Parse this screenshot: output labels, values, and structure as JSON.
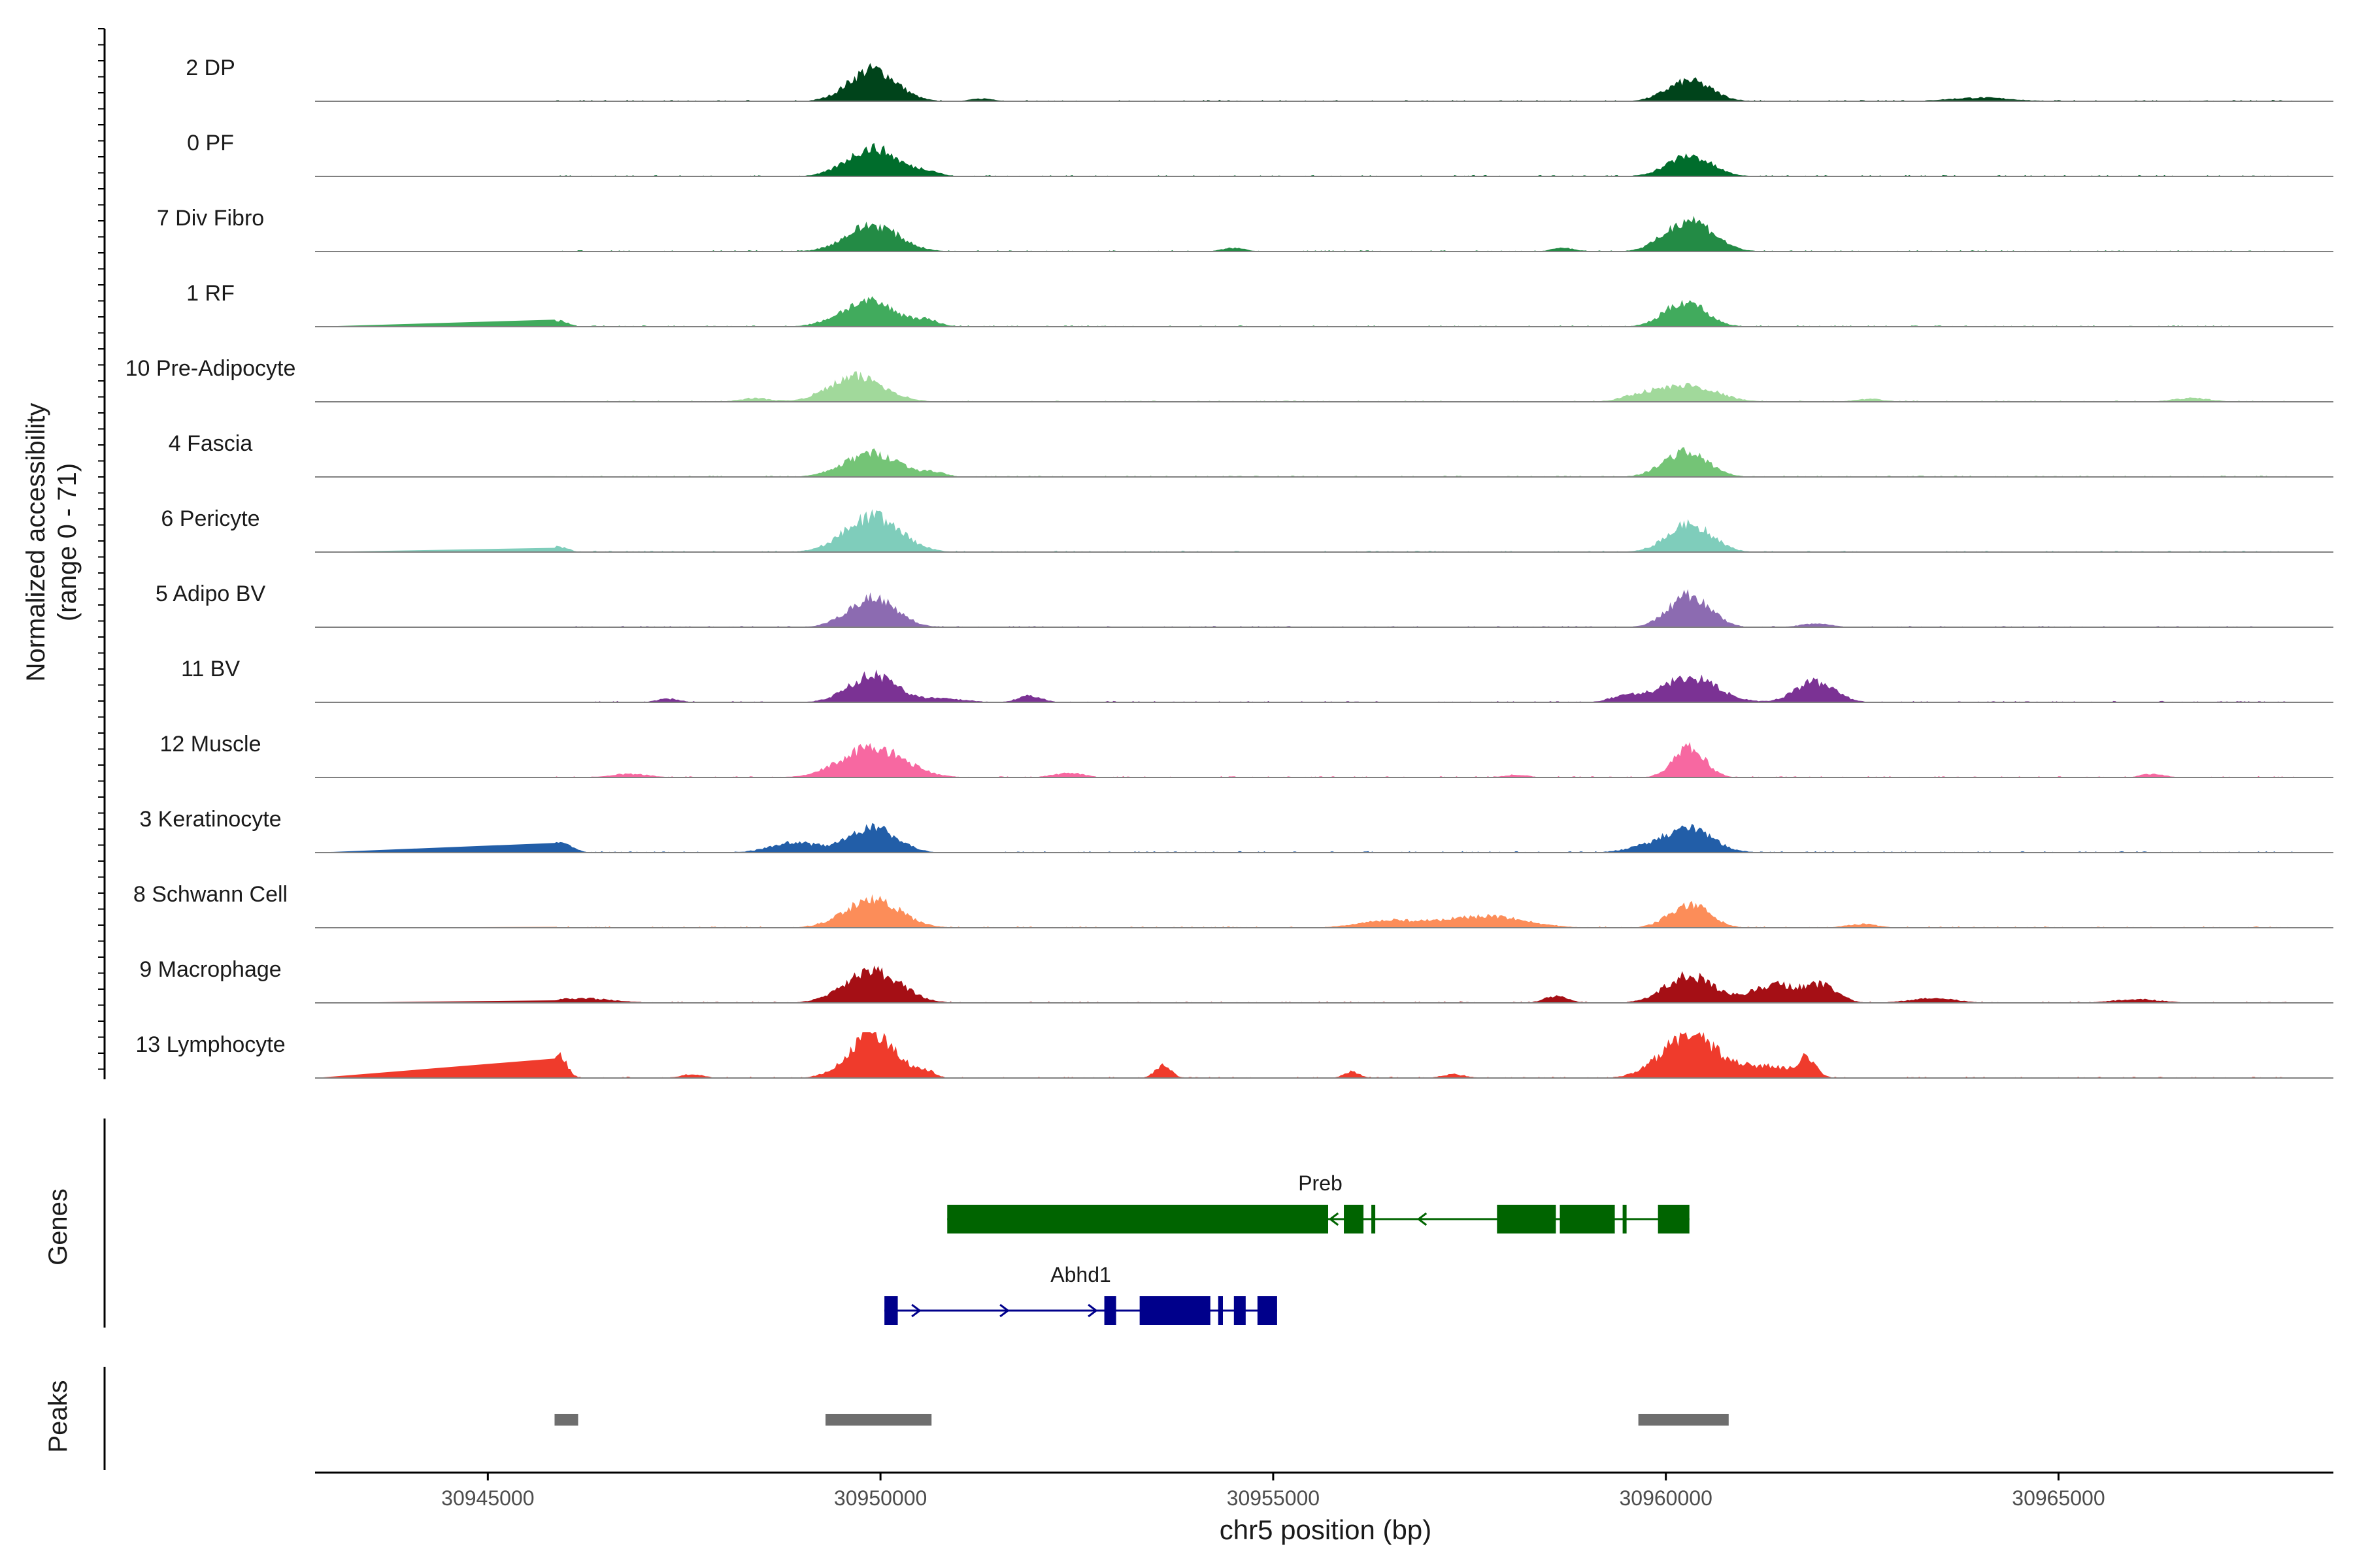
{
  "chart_data": {
    "type": "area",
    "subtype": "genome-coverage-track",
    "ylabel": "Normalized accessibility",
    "ylabel_range": "(range 0 - 71)",
    "ylim": [
      0,
      71
    ],
    "xlabel": "chr5 position (bp)",
    "xlim": [
      30942800,
      30968500
    ],
    "xticks": [
      30945000,
      30950000,
      30955000,
      30960000,
      30965000
    ],
    "xtick_labels": [
      "30945000",
      "30950000",
      "30955000",
      "30960000",
      "30965000"
    ],
    "tracks": [
      {
        "name": "2 DP",
        "color": "#00441b",
        "peaks": [
          [
            30949900,
            70,
            300
          ],
          [
            30960300,
            45,
            280
          ],
          [
            30964000,
            8,
            400
          ],
          [
            30951300,
            6,
            150
          ]
        ]
      },
      {
        "name": "0 PF",
        "color": "#006d2c",
        "peaks": [
          [
            30949900,
            62,
            320
          ],
          [
            30960300,
            45,
            280
          ],
          [
            30950600,
            10,
            150
          ]
        ]
      },
      {
        "name": "7 Div Fibro",
        "color": "#238b45",
        "peaks": [
          [
            30949900,
            58,
            330
          ],
          [
            30960300,
            70,
            300
          ],
          [
            30954500,
            8,
            150
          ],
          [
            30958700,
            8,
            150
          ]
        ]
      },
      {
        "name": "1 RF",
        "color": "#41ab5d",
        "peaks": [
          [
            30949850,
            55,
            350
          ],
          [
            30960250,
            55,
            260
          ],
          [
            30945900,
            14,
            120
          ],
          [
            30950600,
            12,
            150
          ]
        ]
      },
      {
        "name": "10 Pre-Adipocyte",
        "color": "#a1d99b",
        "peaks": [
          [
            30949700,
            55,
            350
          ],
          [
            30960300,
            35,
            350
          ],
          [
            30948400,
            8,
            200
          ],
          [
            30959700,
            14,
            250
          ],
          [
            30966700,
            8,
            250
          ],
          [
            30962600,
            6,
            200
          ]
        ]
      },
      {
        "name": "4 Fascia",
        "color": "#74c476",
        "peaks": [
          [
            30949900,
            52,
            350
          ],
          [
            30960250,
            55,
            280
          ],
          [
            30950700,
            8,
            150
          ]
        ]
      },
      {
        "name": "6 Pericyte",
        "color": "#7fcdbb",
        "peaks": [
          [
            30949900,
            78,
            350
          ],
          [
            30960300,
            62,
            280
          ],
          [
            30945900,
            12,
            120
          ]
        ]
      },
      {
        "name": "5 Adipo BV",
        "color": "#8c6bb1",
        "peaks": [
          [
            30949900,
            65,
            300
          ],
          [
            30960300,
            70,
            260
          ],
          [
            30961900,
            8,
            200
          ]
        ]
      },
      {
        "name": "11 BV",
        "color": "#7b3294",
        "peaks": [
          [
            30949900,
            60,
            300
          ],
          [
            30960300,
            55,
            350
          ],
          [
            30961900,
            45,
            250
          ],
          [
            30959500,
            14,
            200
          ],
          [
            30951900,
            15,
            150
          ],
          [
            30947300,
            8,
            150
          ],
          [
            30950800,
            8,
            300
          ]
        ]
      },
      {
        "name": "12 Muscle",
        "color": "#f768a1",
        "peaks": [
          [
            30949900,
            65,
            400
          ],
          [
            30960300,
            65,
            200
          ],
          [
            30952400,
            10,
            200
          ],
          [
            30946800,
            8,
            250
          ],
          [
            30966200,
            8,
            150
          ],
          [
            30958100,
            6,
            150
          ]
        ]
      },
      {
        "name": "3 Keratinocyte",
        "color": "#225ea8",
        "peaks": [
          [
            30949900,
            55,
            300
          ],
          [
            30960300,
            50,
            300
          ],
          [
            30945900,
            25,
            150
          ],
          [
            30948900,
            22,
            300
          ],
          [
            30959800,
            12,
            300
          ]
        ]
      },
      {
        "name": "8 Schwann Cell",
        "color": "#fc8d59",
        "peaks": [
          [
            30949900,
            62,
            350
          ],
          [
            30960300,
            52,
            250
          ],
          [
            30957700,
            25,
            500
          ],
          [
            30956500,
            15,
            400
          ],
          [
            30962500,
            8,
            200
          ]
        ]
      },
      {
        "name": "9 Macrophage",
        "color": "#a50f15",
        "peaks": [
          [
            30949900,
            70,
            350
          ],
          [
            30960300,
            60,
            300
          ],
          [
            30961400,
            40,
            300
          ],
          [
            30962000,
            35,
            200
          ],
          [
            30958600,
            15,
            150
          ],
          [
            30966000,
            8,
            300
          ],
          [
            30946200,
            10,
            400
          ],
          [
            30963400,
            10,
            300
          ]
        ]
      },
      {
        "name": "13 Lymphocyte",
        "color": "#ef3b2c",
        "peaks": [
          [
            30949900,
            98,
            300
          ],
          [
            30960300,
            95,
            350
          ],
          [
            30945900,
            55,
            100
          ],
          [
            30953600,
            30,
            100
          ],
          [
            30961300,
            25,
            350
          ],
          [
            30961800,
            40,
            100
          ],
          [
            30950600,
            12,
            100
          ],
          [
            30956000,
            14,
            100
          ],
          [
            30947600,
            8,
            150
          ],
          [
            30957300,
            8,
            150
          ]
        ]
      }
    ],
    "genes": [
      {
        "name": "Preb",
        "color": "#006400",
        "strand": "-",
        "start": 30950850,
        "end": 30960300,
        "exons": [
          [
            30950850,
            30955700
          ],
          [
            30955900,
            30956150
          ],
          [
            30956250,
            30956300
          ],
          [
            30957850,
            30958600
          ],
          [
            30958650,
            30959350
          ],
          [
            30959450,
            30959500
          ],
          [
            30959900,
            30960300
          ]
        ]
      },
      {
        "name": "Abhd1",
        "color": "#00008b",
        "strand": "+",
        "start": 30950050,
        "end": 30955050,
        "exons": [
          [
            30950050,
            30950220
          ],
          [
            30952850,
            30953000
          ],
          [
            30953300,
            30954200
          ],
          [
            30954300,
            30954360
          ],
          [
            30954500,
            30954650
          ],
          [
            30954800,
            30955050
          ]
        ]
      }
    ],
    "peaks_track": [
      [
        30945850,
        30946150
      ],
      [
        30949300,
        30950650
      ],
      [
        30959650,
        30960800
      ]
    ],
    "panel_labels": {
      "genes": "Genes",
      "peaks": "Peaks"
    }
  }
}
